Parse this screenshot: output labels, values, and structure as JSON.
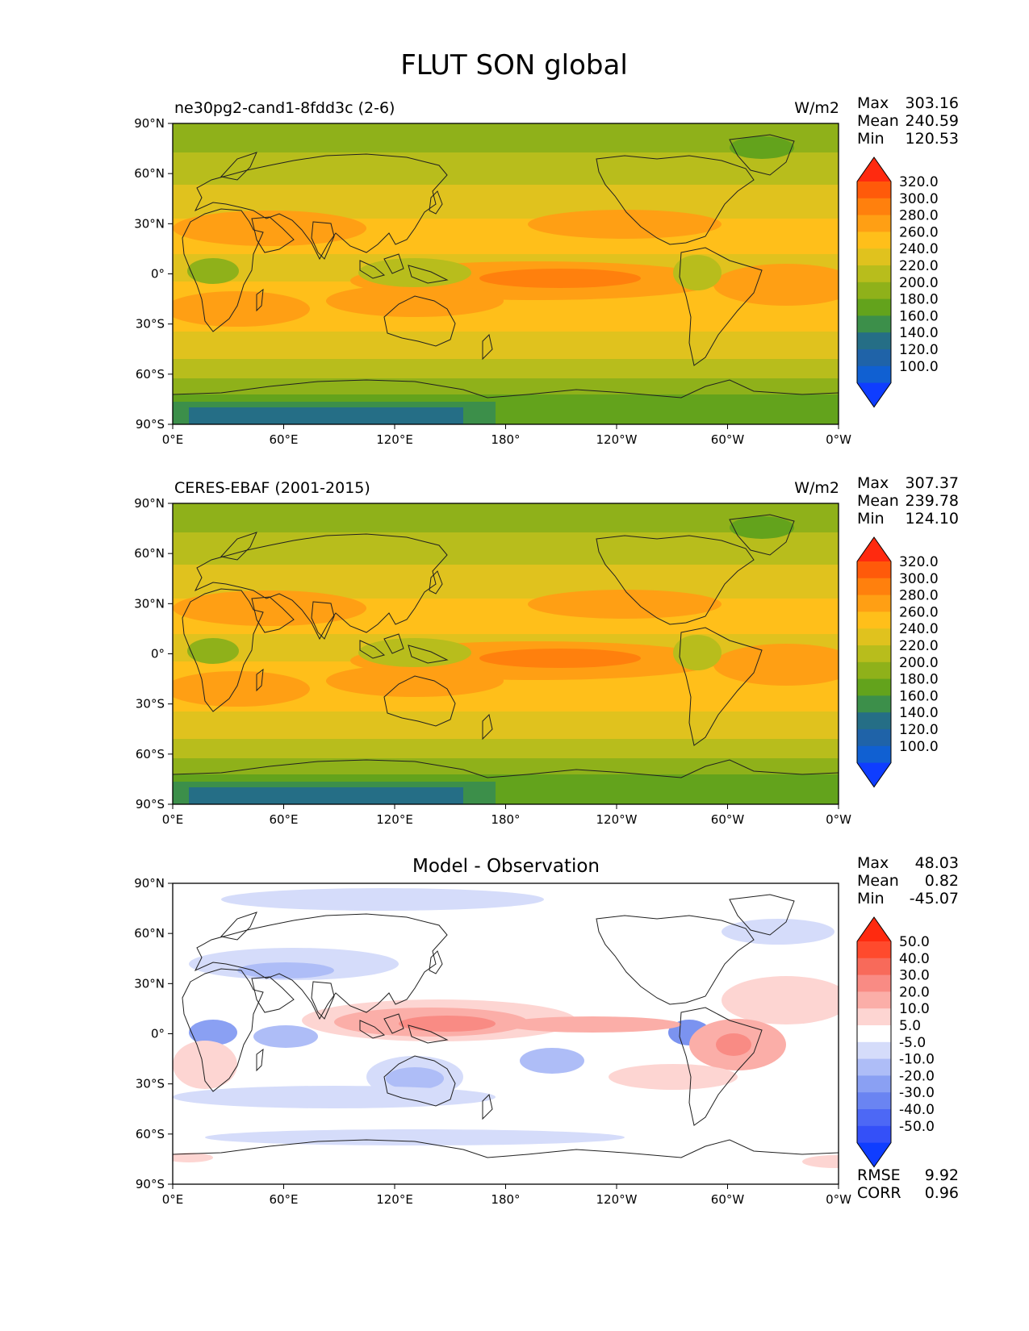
{
  "figure": {
    "title": "FLUT SON global"
  },
  "axis_ticks": {
    "lat": [
      "90°N",
      "60°N",
      "30°N",
      "0°",
      "30°S",
      "60°S",
      "90°S"
    ],
    "lon": [
      "0°E",
      "60°E",
      "120°E",
      "180°",
      "120°W",
      "60°W",
      "0°W"
    ]
  },
  "panels": [
    {
      "title": "ne30pg2-cand1-8fdd3c (2-6)",
      "units": "W/m2",
      "stats": [
        {
          "label": "Max",
          "value": "303.16"
        },
        {
          "label": "Mean",
          "value": "240.59"
        },
        {
          "label": "Min",
          "value": "120.53"
        }
      ],
      "colorbar": {
        "labels": [
          "320.0",
          "300.0",
          "280.0",
          "260.0",
          "240.0",
          "220.0",
          "200.0",
          "180.0",
          "160.0",
          "140.0",
          "120.0",
          "100.0"
        ],
        "colors": [
          "#ff2a0f",
          "#ff5a0a",
          "#ff800d",
          "#ff9f14",
          "#ffbf1a",
          "#e0c21e",
          "#b8bd1c",
          "#8fb11a",
          "#63a31c",
          "#3c8f4a",
          "#256e86",
          "#1f63a8",
          "#1060d2",
          "#0f3dff"
        ]
      }
    },
    {
      "title": "CERES-EBAF (2001-2015)",
      "units": "W/m2",
      "stats": [
        {
          "label": "Max",
          "value": "307.37"
        },
        {
          "label": "Mean",
          "value": "239.78"
        },
        {
          "label": "Min",
          "value": "124.10"
        }
      ],
      "colorbar": {
        "labels": [
          "320.0",
          "300.0",
          "280.0",
          "260.0",
          "240.0",
          "220.0",
          "200.0",
          "180.0",
          "160.0",
          "140.0",
          "120.0",
          "100.0"
        ],
        "colors": [
          "#ff2a0f",
          "#ff5a0a",
          "#ff800d",
          "#ff9f14",
          "#ffbf1a",
          "#e0c21e",
          "#b8bd1c",
          "#8fb11a",
          "#63a31c",
          "#3c8f4a",
          "#256e86",
          "#1f63a8",
          "#1060d2",
          "#0f3dff"
        ]
      }
    },
    {
      "title": "Model - Observation",
      "units": "",
      "stats": [
        {
          "label": "Max",
          "value": "48.03"
        },
        {
          "label": "Mean",
          "value": "0.82"
        },
        {
          "label": "Min",
          "value": "-45.07"
        }
      ],
      "extra_stats": [
        {
          "label": "RMSE",
          "value": "9.92"
        },
        {
          "label": "CORR",
          "value": "0.96"
        }
      ],
      "colorbar": {
        "labels": [
          "50.0",
          "40.0",
          "30.0",
          "20.0",
          "10.0",
          "5.0",
          "-5.0",
          "-10.0",
          "-20.0",
          "-30.0",
          "-40.0",
          "-50.0"
        ],
        "colors": [
          "#ff2a0f",
          "#ff4a2d",
          "#f86a5a",
          "#f98b84",
          "#fbaea8",
          "#fdd5d2",
          "#ffffff",
          "#d5dcfa",
          "#aebdf7",
          "#8aa0f3",
          "#6a84f2",
          "#4d68f5",
          "#3450f8",
          "#0f3dff"
        ]
      }
    }
  ],
  "map_colors": {
    "coast": "#202020",
    "difference_positive": "#f4756a",
    "difference_negative": "#7b93f0"
  }
}
